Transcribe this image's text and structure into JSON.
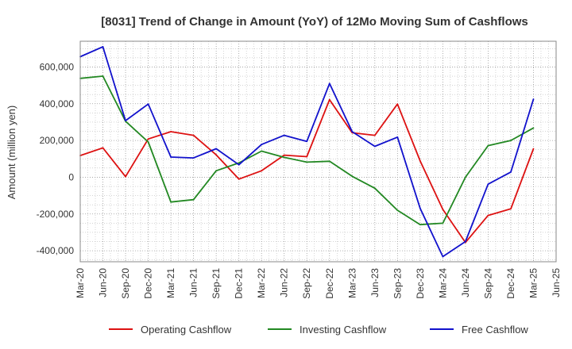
{
  "chart_data": {
    "type": "line",
    "title": "[8031]  Trend of Change in Amount (YoY) of 12Mo Moving Sum of Cashflows",
    "xlabel": "",
    "ylabel": "Amount (million yen)",
    "ylim": [
      -460000,
      740000
    ],
    "yticks": [
      -400000,
      -200000,
      0,
      200000,
      400000,
      600000
    ],
    "ytick_labels": [
      "-400,000",
      "-200,000",
      "0",
      "200,000",
      "400,000",
      "600,000"
    ],
    "grid": true,
    "legend_position": "bottom",
    "categories": [
      "Mar-20",
      "Jun-20",
      "Sep-20",
      "Dec-20",
      "Mar-21",
      "Jun-21",
      "Sep-21",
      "Dec-21",
      "Mar-22",
      "Jun-22",
      "Sep-22",
      "Dec-22",
      "Mar-23",
      "Jun-23",
      "Sep-23",
      "Dec-23",
      "Mar-24",
      "Jun-24",
      "Sep-24",
      "Dec-24",
      "Mar-25",
      "Jun-25"
    ],
    "series": [
      {
        "name": "Operating Cashflow",
        "color": "#dd1111",
        "values": [
          118000,
          160000,
          3000,
          208000,
          248000,
          228000,
          122000,
          -10000,
          35000,
          120000,
          112000,
          422000,
          242000,
          228000,
          398000,
          88000,
          -175000,
          -355000,
          -208000,
          -172000,
          155000,
          null
        ]
      },
      {
        "name": "Investing Cashflow",
        "color": "#228822",
        "values": [
          538000,
          550000,
          305000,
          192000,
          -135000,
          -122000,
          35000,
          78000,
          142000,
          108000,
          82000,
          87000,
          5000,
          -60000,
          -180000,
          -258000,
          -250000,
          0,
          172000,
          200000,
          268000,
          null
        ]
      },
      {
        "name": "Free Cashflow",
        "color": "#1111cc",
        "values": [
          656000,
          710000,
          308000,
          398000,
          110000,
          105000,
          155000,
          68000,
          178000,
          228000,
          195000,
          510000,
          248000,
          168000,
          218000,
          -170000,
          -432000,
          -350000,
          -38000,
          28000,
          425000,
          null
        ]
      }
    ]
  }
}
